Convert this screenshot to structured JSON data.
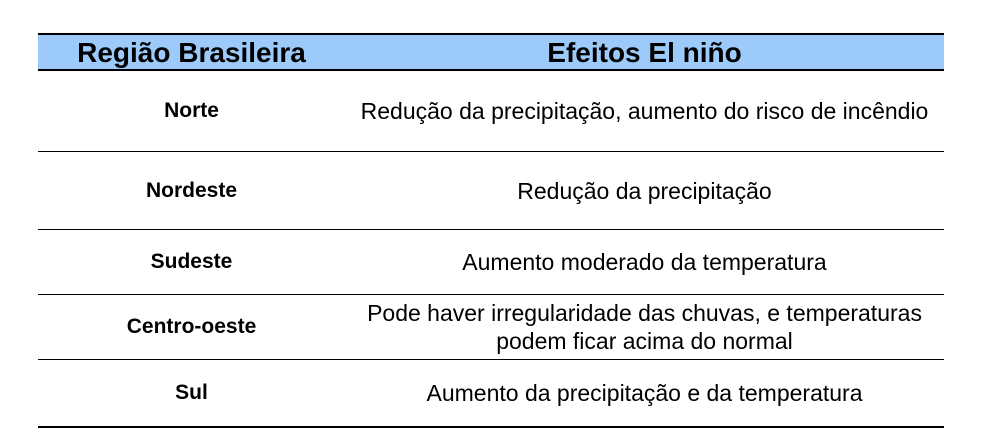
{
  "colors": {
    "page_background": "#FFFFFF",
    "header_background": "#9CCAFA",
    "border": "#000000",
    "text": "#000000"
  },
  "table": {
    "headers": [
      "Região Brasileira",
      "Efeitos El niño"
    ],
    "rows": [
      {
        "region": "Norte",
        "effect": "Redução da precipitação, aumento do risco de incêndio"
      },
      {
        "region": "Nordeste",
        "effect": "Redução da precipitação"
      },
      {
        "region": "Sudeste",
        "effect": "Aumento moderado da temperatura"
      },
      {
        "region": "Centro-oeste",
        "effect": "Pode haver irregularidade das chuvas, e temperaturas podem ficar acima do normal"
      },
      {
        "region": "Sul",
        "effect": "Aumento da precipitação e da temperatura"
      }
    ]
  },
  "chart_data": {
    "type": "table",
    "columns": [
      "Região Brasileira",
      "Efeitos El niño"
    ],
    "rows": [
      [
        "Norte",
        "Redução da precipitação, aumento do risco de incêndio"
      ],
      [
        "Nordeste",
        "Redução da precipitação"
      ],
      [
        "Sudeste",
        "Aumento moderado da temperatura"
      ],
      [
        "Centro-oeste",
        "Pode haver irregularidade das chuvas, e temperaturas podem ficar acima do normal"
      ],
      [
        "Sul",
        "Aumento da precipitação e da temperatura"
      ]
    ],
    "layout": {
      "header_fill": "#9CCAFA",
      "grid": "horizontal-rules-only",
      "column_alignment": [
        "center",
        "center"
      ]
    }
  }
}
